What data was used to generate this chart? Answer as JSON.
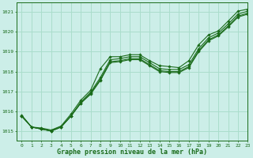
{
  "bg_color": "#cceee8",
  "grid_color": "#aaddcc",
  "line_color": "#1a6b1a",
  "xlabel": "Graphe pression niveau de la mer (hPa)",
  "ylim": [
    1014.5,
    1021.5
  ],
  "xlim": [
    -0.5,
    23
  ],
  "yticks": [
    1015,
    1016,
    1017,
    1018,
    1019,
    1020,
    1021
  ],
  "xticks": [
    0,
    1,
    2,
    3,
    4,
    5,
    6,
    7,
    8,
    9,
    10,
    11,
    12,
    13,
    14,
    15,
    16,
    17,
    18,
    19,
    20,
    21,
    22,
    23
  ],
  "series": [
    [
      1015.8,
      1015.2,
      1015.15,
      1015.05,
      1015.25,
      1015.85,
      1016.55,
      1017.05,
      1018.15,
      1018.75,
      1018.75,
      1018.85,
      1018.85,
      1018.55,
      1018.3,
      1018.25,
      1018.2,
      1018.55,
      1019.35,
      1019.85,
      1020.05,
      1020.55,
      1021.05,
      1021.15
    ],
    [
      1015.75,
      1015.2,
      1015.1,
      1015.0,
      1015.2,
      1015.75,
      1016.45,
      1016.95,
      1017.7,
      1018.6,
      1018.65,
      1018.75,
      1018.75,
      1018.45,
      1018.15,
      1018.1,
      1018.1,
      1018.35,
      1019.15,
      1019.7,
      1019.95,
      1020.4,
      1020.9,
      1021.05
    ],
    [
      1015.75,
      1015.2,
      1015.1,
      1015.0,
      1015.2,
      1015.75,
      1016.4,
      1016.9,
      1017.6,
      1018.5,
      1018.55,
      1018.65,
      1018.65,
      1018.35,
      1018.05,
      1018.0,
      1018.0,
      1018.25,
      1019.05,
      1019.6,
      1019.85,
      1020.3,
      1020.8,
      1020.95
    ],
    [
      1015.75,
      1015.2,
      1015.1,
      1015.0,
      1015.2,
      1015.75,
      1016.4,
      1016.85,
      1017.55,
      1018.45,
      1018.5,
      1018.6,
      1018.6,
      1018.3,
      1018.0,
      1017.95,
      1017.95,
      1018.2,
      1019.0,
      1019.55,
      1019.8,
      1020.25,
      1020.75,
      1020.9
    ]
  ]
}
